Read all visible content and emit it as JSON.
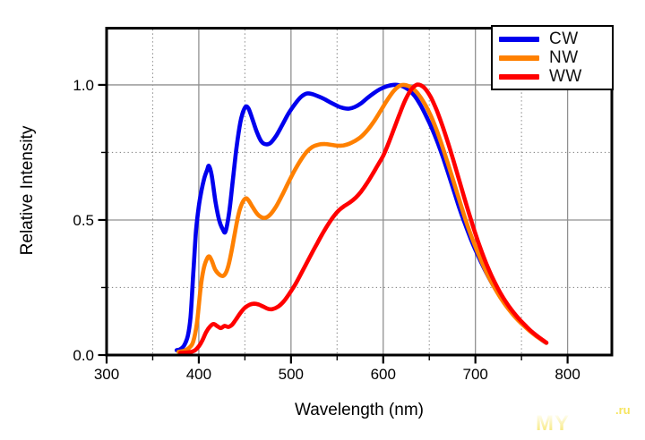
{
  "page": {
    "background": "#ffffff"
  },
  "watermark": {
    "text_left": "MY",
    "text_right": ".ru",
    "color_left": "#f6e564",
    "color_right": "#f6e45e"
  },
  "chart_data": {
    "type": "line",
    "title": "",
    "xlabel": "Wavelength (nm)",
    "ylabel": "Relative Intensity",
    "xlim": [
      300,
      848
    ],
    "ylim": [
      0,
      1.21
    ],
    "x_ticks_major": {
      "values": [
        300,
        400,
        500,
        600,
        700,
        800
      ],
      "labels": [
        "300",
        "400",
        "500",
        "600",
        "700",
        "800"
      ]
    },
    "x_ticks_minor": [
      350,
      450,
      550,
      650,
      750
    ],
    "y_ticks_major": {
      "values": [
        0,
        0.5,
        1.0
      ],
      "labels": [
        "0.0",
        "0.5",
        "1.0"
      ]
    },
    "y_ticks_minor": [
      0.25,
      0.75
    ],
    "grid": {
      "major_color": "#909090",
      "minor_color": "#8a8a8a",
      "major_style": "solid",
      "minor_style": "dotted"
    },
    "frame_color": "#000000",
    "legend": {
      "position": "top-right"
    },
    "series": [
      {
        "name": "CW",
        "color": "#0000ee",
        "points": [
          [
            376,
            0.018
          ],
          [
            380,
            0.022
          ],
          [
            384,
            0.035
          ],
          [
            388,
            0.07
          ],
          [
            391,
            0.14
          ],
          [
            394,
            0.3
          ],
          [
            397,
            0.46
          ],
          [
            400,
            0.55
          ],
          [
            403,
            0.61
          ],
          [
            406,
            0.655
          ],
          [
            409,
            0.685
          ],
          [
            411,
            0.7
          ],
          [
            414,
            0.665
          ],
          [
            418,
            0.57
          ],
          [
            422,
            0.5
          ],
          [
            426,
            0.465
          ],
          [
            429,
            0.458
          ],
          [
            433,
            0.53
          ],
          [
            437,
            0.65
          ],
          [
            441,
            0.77
          ],
          [
            445,
            0.86
          ],
          [
            448,
            0.9
          ],
          [
            451,
            0.92
          ],
          [
            454,
            0.912
          ],
          [
            458,
            0.875
          ],
          [
            463,
            0.825
          ],
          [
            468,
            0.79
          ],
          [
            473,
            0.78
          ],
          [
            478,
            0.786
          ],
          [
            484,
            0.812
          ],
          [
            490,
            0.848
          ],
          [
            497,
            0.893
          ],
          [
            504,
            0.928
          ],
          [
            511,
            0.956
          ],
          [
            517,
            0.968
          ],
          [
            523,
            0.966
          ],
          [
            530,
            0.957
          ],
          [
            537,
            0.946
          ],
          [
            544,
            0.933
          ],
          [
            551,
            0.921
          ],
          [
            557,
            0.914
          ],
          [
            563,
            0.912
          ],
          [
            569,
            0.918
          ],
          [
            576,
            0.932
          ],
          [
            583,
            0.952
          ],
          [
            590,
            0.97
          ],
          [
            597,
            0.985
          ],
          [
            604,
            0.995
          ],
          [
            611,
            1.0
          ],
          [
            617,
            0.999
          ],
          [
            623,
            0.992
          ],
          [
            629,
            0.978
          ],
          [
            635,
            0.955
          ],
          [
            641,
            0.922
          ],
          [
            647,
            0.882
          ],
          [
            653,
            0.838
          ],
          [
            659,
            0.787
          ],
          [
            665,
            0.73
          ],
          [
            671,
            0.668
          ],
          [
            677,
            0.604
          ],
          [
            683,
            0.54
          ],
          [
            689,
            0.483
          ],
          [
            695,
            0.43
          ],
          [
            701,
            0.382
          ],
          [
            707,
            0.338
          ],
          [
            713,
            0.297
          ],
          [
            719,
            0.26
          ],
          [
            725,
            0.227
          ],
          [
            731,
            0.197
          ],
          [
            737,
            0.17
          ],
          [
            743,
            0.146
          ],
          [
            749,
            0.124
          ],
          [
            755,
            0.104
          ],
          [
            761,
            0.086
          ],
          [
            767,
            0.07
          ],
          [
            772,
            0.056
          ],
          [
            777,
            0.045
          ]
        ]
      },
      {
        "name": "NW",
        "color": "#ff8000",
        "points": [
          [
            378,
            0.012
          ],
          [
            384,
            0.016
          ],
          [
            390,
            0.028
          ],
          [
            394,
            0.05
          ],
          [
            398,
            0.12
          ],
          [
            402,
            0.25
          ],
          [
            405,
            0.315
          ],
          [
            408,
            0.35
          ],
          [
            411,
            0.365
          ],
          [
            414,
            0.35
          ],
          [
            418,
            0.315
          ],
          [
            423,
            0.296
          ],
          [
            427,
            0.294
          ],
          [
            431,
            0.318
          ],
          [
            435,
            0.375
          ],
          [
            439,
            0.45
          ],
          [
            443,
            0.52
          ],
          [
            447,
            0.562
          ],
          [
            451,
            0.58
          ],
          [
            454,
            0.572
          ],
          [
            458,
            0.55
          ],
          [
            463,
            0.524
          ],
          [
            468,
            0.51
          ],
          [
            473,
            0.509
          ],
          [
            478,
            0.522
          ],
          [
            484,
            0.551
          ],
          [
            490,
            0.589
          ],
          [
            497,
            0.638
          ],
          [
            504,
            0.684
          ],
          [
            511,
            0.724
          ],
          [
            517,
            0.752
          ],
          [
            523,
            0.77
          ],
          [
            530,
            0.779
          ],
          [
            537,
            0.781
          ],
          [
            544,
            0.778
          ],
          [
            551,
            0.775
          ],
          [
            557,
            0.776
          ],
          [
            563,
            0.782
          ],
          [
            569,
            0.792
          ],
          [
            576,
            0.808
          ],
          [
            583,
            0.833
          ],
          [
            590,
            0.865
          ],
          [
            597,
            0.903
          ],
          [
            604,
            0.942
          ],
          [
            611,
            0.976
          ],
          [
            617,
            0.995
          ],
          [
            622,
            1.0
          ],
          [
            628,
            0.995
          ],
          [
            634,
            0.981
          ],
          [
            640,
            0.957
          ],
          [
            646,
            0.924
          ],
          [
            652,
            0.883
          ],
          [
            658,
            0.832
          ],
          [
            664,
            0.774
          ],
          [
            670,
            0.711
          ],
          [
            676,
            0.646
          ],
          [
            682,
            0.58
          ],
          [
            688,
            0.515
          ],
          [
            694,
            0.455
          ],
          [
            700,
            0.401
          ],
          [
            706,
            0.352
          ],
          [
            712,
            0.306
          ],
          [
            718,
            0.266
          ],
          [
            724,
            0.23
          ],
          [
            730,
            0.198
          ],
          [
            736,
            0.17
          ],
          [
            742,
            0.145
          ],
          [
            748,
            0.123
          ],
          [
            754,
            0.104
          ],
          [
            760,
            0.086
          ],
          [
            766,
            0.07
          ],
          [
            772,
            0.056
          ],
          [
            777,
            0.045
          ]
        ]
      },
      {
        "name": "WW",
        "color": "#ff0000",
        "points": [
          [
            380,
            0.008
          ],
          [
            386,
            0.009
          ],
          [
            392,
            0.012
          ],
          [
            396,
            0.018
          ],
          [
            400,
            0.032
          ],
          [
            404,
            0.055
          ],
          [
            408,
            0.085
          ],
          [
            412,
            0.105
          ],
          [
            416,
            0.115
          ],
          [
            420,
            0.107
          ],
          [
            424,
            0.1
          ],
          [
            428,
            0.108
          ],
          [
            432,
            0.104
          ],
          [
            436,
            0.112
          ],
          [
            440,
            0.13
          ],
          [
            445,
            0.155
          ],
          [
            450,
            0.175
          ],
          [
            455,
            0.186
          ],
          [
            460,
            0.19
          ],
          [
            465,
            0.187
          ],
          [
            470,
            0.179
          ],
          [
            475,
            0.171
          ],
          [
            480,
            0.17
          ],
          [
            486,
            0.179
          ],
          [
            492,
            0.198
          ],
          [
            498,
            0.226
          ],
          [
            504,
            0.258
          ],
          [
            510,
            0.295
          ],
          [
            516,
            0.334
          ],
          [
            522,
            0.373
          ],
          [
            528,
            0.411
          ],
          [
            534,
            0.448
          ],
          [
            540,
            0.482
          ],
          [
            546,
            0.512
          ],
          [
            552,
            0.536
          ],
          [
            558,
            0.552
          ],
          [
            564,
            0.565
          ],
          [
            570,
            0.582
          ],
          [
            576,
            0.605
          ],
          [
            582,
            0.634
          ],
          [
            588,
            0.667
          ],
          [
            594,
            0.702
          ],
          [
            600,
            0.738
          ],
          [
            606,
            0.786
          ],
          [
            612,
            0.84
          ],
          [
            618,
            0.894
          ],
          [
            624,
            0.944
          ],
          [
            630,
            0.981
          ],
          [
            636,
            1.0
          ],
          [
            641,
            0.998
          ],
          [
            646,
            0.984
          ],
          [
            652,
            0.952
          ],
          [
            658,
            0.906
          ],
          [
            664,
            0.851
          ],
          [
            670,
            0.789
          ],
          [
            676,
            0.722
          ],
          [
            682,
            0.652
          ],
          [
            688,
            0.582
          ],
          [
            694,
            0.514
          ],
          [
            700,
            0.449
          ],
          [
            706,
            0.39
          ],
          [
            712,
            0.337
          ],
          [
            718,
            0.29
          ],
          [
            724,
            0.249
          ],
          [
            730,
            0.213
          ],
          [
            736,
            0.182
          ],
          [
            742,
            0.155
          ],
          [
            748,
            0.131
          ],
          [
            754,
            0.11
          ],
          [
            760,
            0.09
          ],
          [
            766,
            0.073
          ],
          [
            772,
            0.058
          ],
          [
            777,
            0.046
          ]
        ]
      }
    ]
  }
}
